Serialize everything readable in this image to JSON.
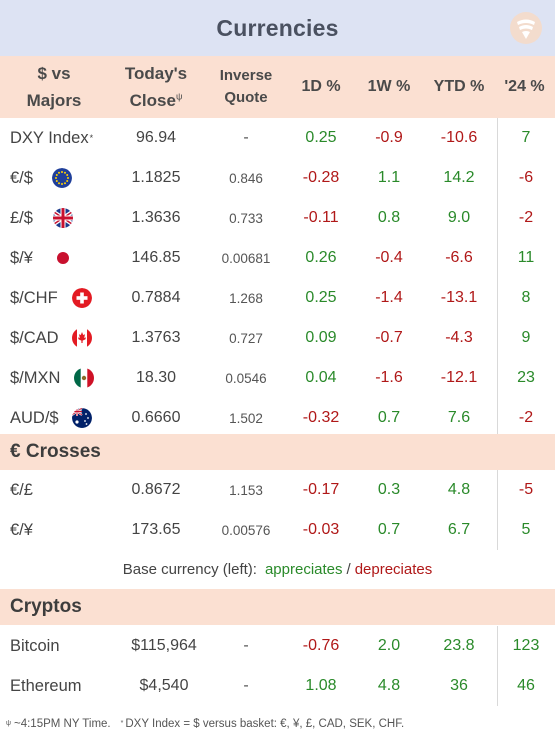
{
  "title": "Currencies",
  "columns": {
    "pair": [
      "$ vs",
      "Majors"
    ],
    "close": [
      "Today's",
      "Close"
    ],
    "close_mark": "ψ",
    "inverse": [
      "Inverse",
      "Quote"
    ],
    "d1": "1D %",
    "w1": "1W %",
    "ytd": "YTD %",
    "y24": "'24 %"
  },
  "majors": [
    {
      "name": "DXY Index",
      "mark": "*",
      "flag": "",
      "close": "96.94",
      "inverse": "-",
      "d1": "0.25",
      "w1": "-0.9",
      "ytd": "-10.6",
      "y24": "7"
    },
    {
      "name": "€/$",
      "mark": "",
      "flag": "eu",
      "close": "1.1825",
      "inverse": "0.846",
      "d1": "-0.28",
      "w1": "1.1",
      "ytd": "14.2",
      "y24": "-6"
    },
    {
      "name": "£/$",
      "mark": "",
      "flag": "uk",
      "close": "1.3636",
      "inverse": "0.733",
      "d1": "-0.11",
      "w1": "0.8",
      "ytd": "9.0",
      "y24": "-2"
    },
    {
      "name": "$/¥",
      "mark": "",
      "flag": "jp",
      "close": "146.85",
      "inverse": "0.00681",
      "d1": "0.26",
      "w1": "-0.4",
      "ytd": "-6.6",
      "y24": "11"
    },
    {
      "name": "$/CHF",
      "mark": "",
      "flag": "ch",
      "close": "0.7884",
      "inverse": "1.268",
      "d1": "0.25",
      "w1": "-1.4",
      "ytd": "-13.1",
      "y24": "8"
    },
    {
      "name": "$/CAD",
      "mark": "",
      "flag": "ca",
      "close": "1.3763",
      "inverse": "0.727",
      "d1": "0.09",
      "w1": "-0.7",
      "ytd": "-4.3",
      "y24": "9"
    },
    {
      "name": "$/MXN",
      "mark": "",
      "flag": "mx",
      "close": "18.30",
      "inverse": "0.0546",
      "d1": "0.04",
      "w1": "-1.6",
      "ytd": "-12.1",
      "y24": "23"
    },
    {
      "name": "AUD/$",
      "mark": "",
      "flag": "au",
      "close": "0.6660",
      "inverse": "1.502",
      "d1": "-0.32",
      "w1": "0.7",
      "ytd": "7.6",
      "y24": "-2"
    }
  ],
  "crosses_title": "€ Crosses",
  "crosses": [
    {
      "name": "€/£",
      "close": "0.8672",
      "inverse": "1.153",
      "d1": "-0.17",
      "w1": "0.3",
      "ytd": "4.8",
      "y24": "-5"
    },
    {
      "name": "€/¥",
      "close": "173.65",
      "inverse": "0.00576",
      "d1": "-0.03",
      "w1": "0.7",
      "ytd": "6.7",
      "y24": "5"
    }
  ],
  "legend": {
    "prefix": "Base currency (left):",
    "appreciates": "appreciates",
    "sep": "/",
    "depreciates": "depreciates"
  },
  "cryptos_title": "Cryptos",
  "cryptos": [
    {
      "name": "Bitcoin",
      "close": "$115,964",
      "inverse": "-",
      "d1": "-0.76",
      "w1": "2.0",
      "ytd": "23.8",
      "y24": "123"
    },
    {
      "name": "Ethereum",
      "close": "$4,540",
      "inverse": "-",
      "d1": "1.08",
      "w1": "4.8",
      "ytd": "36",
      "y24": "46"
    }
  ],
  "footer": {
    "mark1": "ψ",
    "note1": "~4:15PM NY Time.",
    "mark2": "*",
    "note2": "DXY Index = $ versus basket: €, ¥, £, CAD, SEK, CHF."
  },
  "colors": {
    "positive": "#2a8a2a",
    "negative": "#b01818",
    "header_bg": "#fbe0d2",
    "title_bg": "#dde3f3"
  }
}
